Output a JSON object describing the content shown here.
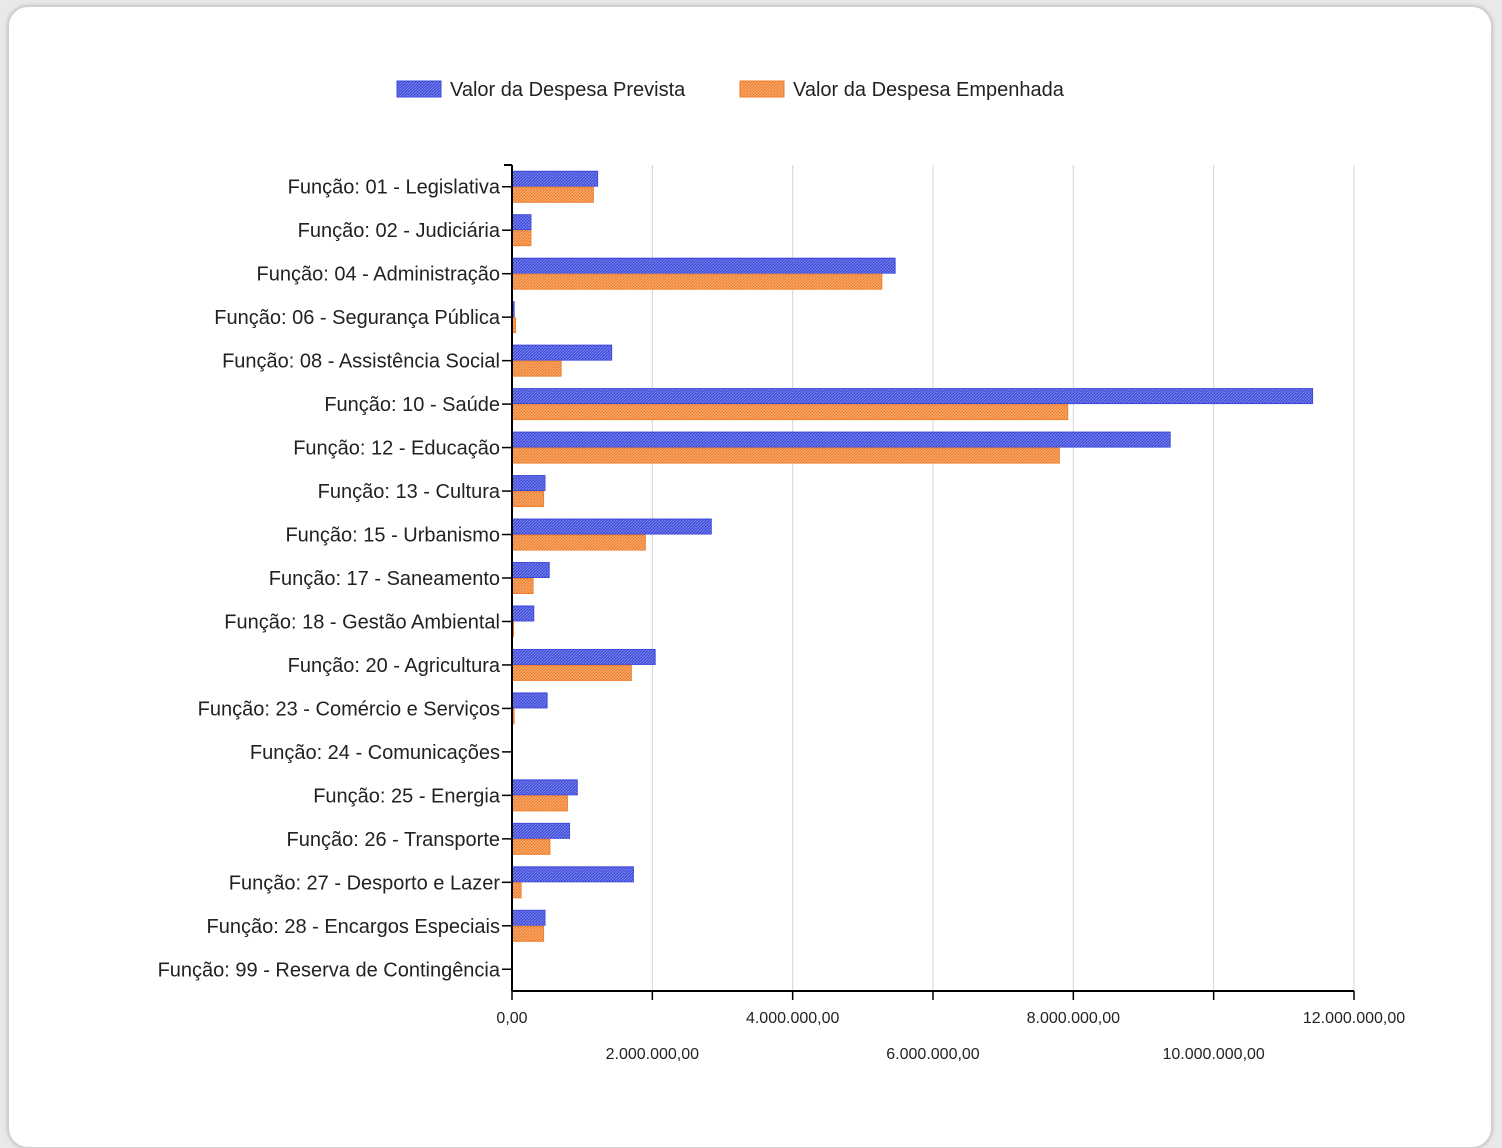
{
  "chart_data": {
    "type": "bar",
    "orientation": "horizontal",
    "categories": [
      "Função: 01 - Legislativa",
      "Função: 02 - Judiciária",
      "Função: 04 - Administração",
      "Função: 06 - Segurança Pública",
      "Função: 08 - Assistência Social",
      "Função: 10 - Saúde",
      "Função: 12 - Educação",
      "Função: 13 - Cultura",
      "Função: 15 - Urbanismo",
      "Função: 17 - Saneamento",
      "Função: 18 - Gestão Ambiental",
      "Função: 20 - Agricultura",
      "Função: 23 - Comércio e Serviços",
      "Função: 24 - Comunicações",
      "Função: 25 - Energia",
      "Função: 26 - Transporte",
      "Função: 27 - Desporto e Lazer",
      "Função: 28 - Encargos Especiais",
      "Função: 99 - Reserva de Contingência"
    ],
    "series": [
      {
        "name": "Valor da Despesa Prevista",
        "color": "#3f4bd9",
        "values": [
          1220000,
          270000,
          5460000,
          30000,
          1420000,
          11410000,
          9380000,
          470000,
          2840000,
          530000,
          310000,
          2040000,
          500000,
          0,
          930000,
          820000,
          1730000,
          470000,
          0
        ]
      },
      {
        "name": "Valor da Despesa Empenhada",
        "color": "#f07f2e",
        "values": [
          1160000,
          270000,
          5270000,
          50000,
          700000,
          7920000,
          7800000,
          450000,
          1900000,
          300000,
          20000,
          1700000,
          30000,
          0,
          790000,
          540000,
          130000,
          450000,
          0
        ]
      }
    ],
    "x_ticks": [
      {
        "value": 0,
        "label": "0,00"
      },
      {
        "value": 2000000,
        "label": "2.000.000,00"
      },
      {
        "value": 4000000,
        "label": "4.000.000,00"
      },
      {
        "value": 6000000,
        "label": "6.000.000,00"
      },
      {
        "value": 8000000,
        "label": "8.000.000,00"
      },
      {
        "value": 10000000,
        "label": "10.000.000,00"
      },
      {
        "value": 12000000,
        "label": "12.000.000,00"
      }
    ],
    "xlim": [
      0,
      12000000
    ],
    "grid": true,
    "legend_position": "top",
    "title": "",
    "xlabel": "",
    "ylabel": ""
  }
}
